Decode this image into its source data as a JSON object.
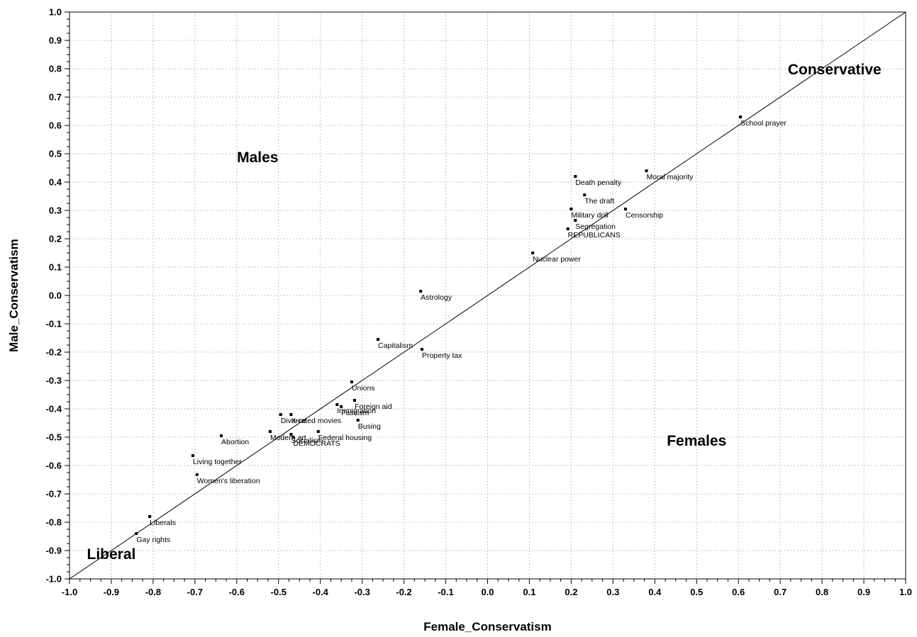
{
  "chart_data": {
    "type": "scatter",
    "xlabel": "Female_Conservatism",
    "ylabel": "Male_Conservatism",
    "xlim": [
      -1.0,
      1.0
    ],
    "ylim": [
      -1.0,
      1.0
    ],
    "ticks": [
      "-1.0",
      "-0.9",
      "-0.8",
      "-0.7",
      "-0.6",
      "-0.5",
      "-0.4",
      "-0.3",
      "-0.2",
      "-0.1",
      "0.0",
      "0.1",
      "0.2",
      "0.3",
      "0.4",
      "0.5",
      "0.6",
      "0.7",
      "0.8",
      "0.9",
      "1.0"
    ],
    "grid": true,
    "reference_line": "y = x",
    "region_labels": [
      {
        "text": "Conservative",
        "x": 0.83,
        "y": 0.78
      },
      {
        "text": "Males",
        "x": -0.55,
        "y": 0.47
      },
      {
        "text": "Females",
        "x": 0.5,
        "y": -0.53
      },
      {
        "text": "Liberal",
        "x": -0.9,
        "y": -0.93
      }
    ],
    "points": [
      {
        "label": "School prayer",
        "x": 0.605,
        "y": 0.63
      },
      {
        "label": "Moral majority",
        "x": 0.38,
        "y": 0.44
      },
      {
        "label": "Death penalty",
        "x": 0.21,
        "y": 0.42
      },
      {
        "label": "The draft",
        "x": 0.232,
        "y": 0.355
      },
      {
        "label": "Military drill",
        "x": 0.2,
        "y": 0.305
      },
      {
        "label": "Censorship",
        "x": 0.33,
        "y": 0.305
      },
      {
        "label": "Segregation",
        "x": 0.21,
        "y": 0.265
      },
      {
        "label": "REPUBLICANS",
        "x": 0.192,
        "y": 0.235
      },
      {
        "label": "Nuclear power",
        "x": 0.108,
        "y": 0.15
      },
      {
        "label": "Astrology",
        "x": -0.16,
        "y": 0.015
      },
      {
        "label": "Capitalism",
        "x": -0.262,
        "y": -0.155
      },
      {
        "label": "Property tax",
        "x": -0.157,
        "y": -0.19
      },
      {
        "label": "Unions",
        "x": -0.325,
        "y": -0.305
      },
      {
        "label": "Foreign aid",
        "x": -0.318,
        "y": -0.37
      },
      {
        "label": "Immigration",
        "x": -0.36,
        "y": -0.385
      },
      {
        "label": "Fascism",
        "x": -0.35,
        "y": -0.392
      },
      {
        "label": "Federal housing",
        "x": -0.405,
        "y": -0.48
      },
      {
        "label": "Busing",
        "x": -0.31,
        "y": -0.44
      },
      {
        "label": "Divorce",
        "x": -0.495,
        "y": -0.42
      },
      {
        "label": "X-rated movies",
        "x": -0.47,
        "y": -0.42
      },
      {
        "label": "Abortion",
        "x": -0.637,
        "y": -0.495
      },
      {
        "label": "Modern art",
        "x": -0.52,
        "y": -0.48
      },
      {
        "label": "Socialism",
        "x": -0.47,
        "y": -0.49
      },
      {
        "label": "DEMOCRATS",
        "x": -0.465,
        "y": -0.5
      },
      {
        "label": "Living together",
        "x": -0.705,
        "y": -0.565
      },
      {
        "label": "Women's liberation",
        "x": -0.695,
        "y": -0.632
      },
      {
        "label": "Liberals",
        "x": -0.808,
        "y": -0.78
      },
      {
        "label": "Gay rights",
        "x": -0.84,
        "y": -0.84
      }
    ]
  }
}
